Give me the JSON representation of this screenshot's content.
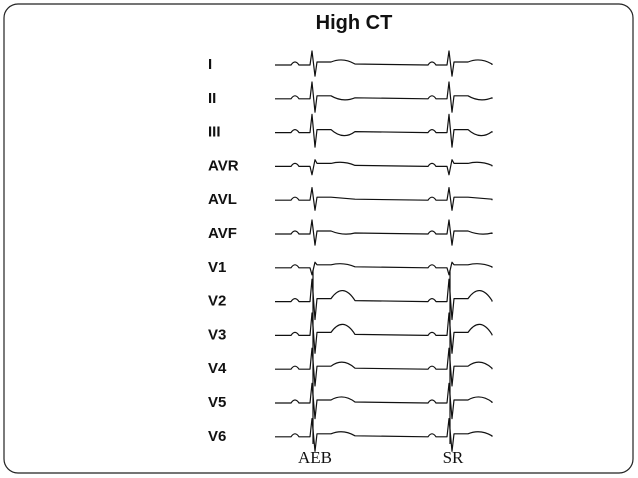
{
  "title": "High CT",
  "leads": [
    "I",
    "II",
    "III",
    "AVR",
    "AVL",
    "AVF",
    "V1",
    "V2",
    "V3",
    "V4",
    "V5",
    "V6"
  ],
  "beat_labels": [
    "AEB",
    "SR"
  ]
}
